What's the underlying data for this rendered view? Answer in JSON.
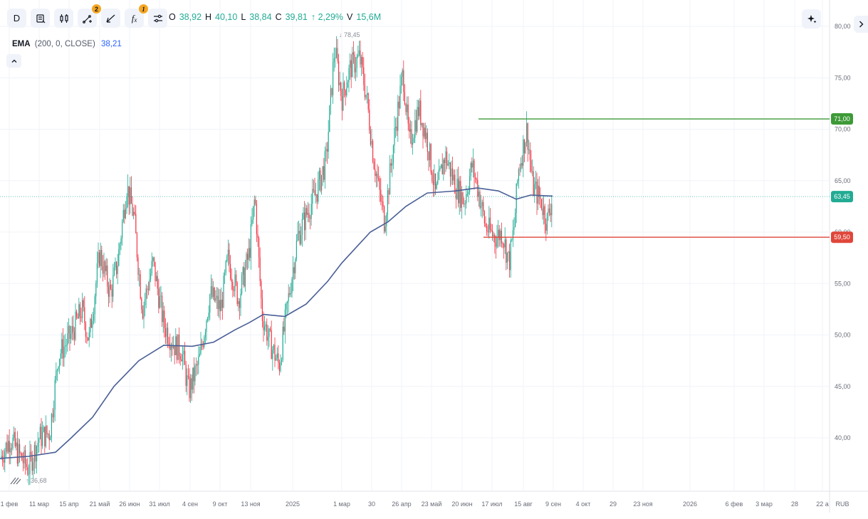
{
  "toolbar": {
    "interval_label": "D",
    "drawings_badge": "2",
    "indicators_badge": "1",
    "indicators_label": "f",
    "indicators_sub": "x"
  },
  "ohlc": {
    "o_label": "O",
    "o_value": "38,92",
    "h_label": "H",
    "h_value": "40,10",
    "l_label": "L",
    "l_value": "38,84",
    "c_label": "C",
    "c_value": "39,81",
    "change": "↑ 2,29%",
    "v_label": "V",
    "v_value": "15,6M"
  },
  "ema_legend": {
    "name": "EMA",
    "params": "(200, 0, CLOSE)",
    "value": "38,21"
  },
  "colors": {
    "up": "#22ab94",
    "down": "#f23645",
    "ema": "#4a5f96",
    "grid": "#f0f3fa",
    "last_price": "#22ab94",
    "resistance": "#3d9a37",
    "support": "#e0463a"
  },
  "chart_data": {
    "type": "candlestick",
    "y_ticks": [
      "80,00",
      "75,00",
      "70,00",
      "65,00",
      "60,00",
      "55,00",
      "50,00",
      "45,00",
      "40,00"
    ],
    "ylim": [
      35.5,
      81.5
    ],
    "x_ticks": [
      "1 фев",
      "11 мар",
      "15 апр",
      "21 май",
      "26 июн",
      "31 июл",
      "4 сен",
      "9 окт",
      "13 ноя",
      "2025",
      "1 мар",
      "30",
      "26 апр",
      "23 май",
      "20 июн",
      "17 июл",
      "15 авг",
      "9 сен",
      "4 окт",
      "29",
      "23 ноя",
      "2026",
      "6 фев",
      "3 мар",
      "28",
      "22 а"
    ],
    "currency": "RUB",
    "high_annotation": "78,45",
    "low_annotation": "36,68",
    "last_price": {
      "label": "63,45",
      "value": 63.45
    },
    "resistance": {
      "label": "71,00",
      "value": 71.0
    },
    "support": {
      "label": "59,50",
      "value": 59.5
    },
    "price_path": [
      [
        0,
        38.0
      ],
      [
        15,
        40.0
      ],
      [
        25,
        38.5
      ],
      [
        40,
        37.0
      ],
      [
        55,
        40.0
      ],
      [
        70,
        40.5
      ],
      [
        82,
        48.0
      ],
      [
        100,
        50.0
      ],
      [
        115,
        52.5
      ],
      [
        125,
        49.5
      ],
      [
        140,
        58.0
      ],
      [
        155,
        54.0
      ],
      [
        165,
        57.0
      ],
      [
        178,
        64.5
      ],
      [
        188,
        61.5
      ],
      [
        200,
        52.5
      ],
      [
        215,
        57.0
      ],
      [
        230,
        51.0
      ],
      [
        245,
        49.0
      ],
      [
        255,
        48.5
      ],
      [
        265,
        44.5
      ],
      [
        280,
        47.5
      ],
      [
        295,
        54.0
      ],
      [
        310,
        52.5
      ],
      [
        320,
        57.5
      ],
      [
        335,
        53.5
      ],
      [
        350,
        58.0
      ],
      [
        358,
        63.5
      ],
      [
        368,
        52.0
      ],
      [
        378,
        49.5
      ],
      [
        392,
        47.0
      ],
      [
        405,
        53.5
      ],
      [
        418,
        59.5
      ],
      [
        432,
        62.0
      ],
      [
        445,
        64.0
      ],
      [
        458,
        67.0
      ],
      [
        470,
        78.0
      ],
      [
        480,
        73.0
      ],
      [
        492,
        76.0
      ],
      [
        505,
        77.0
      ],
      [
        515,
        73.0
      ],
      [
        525,
        67.0
      ],
      [
        540,
        61.0
      ],
      [
        555,
        70.0
      ],
      [
        566,
        75.5
      ],
      [
        575,
        68.5
      ],
      [
        588,
        72.0
      ],
      [
        600,
        69.0
      ],
      [
        612,
        63.5
      ],
      [
        625,
        67.5
      ],
      [
        640,
        64.5
      ],
      [
        652,
        63.0
      ],
      [
        663,
        66.5
      ],
      [
        672,
        64.0
      ],
      [
        682,
        60.5
      ],
      [
        695,
        59.5
      ],
      [
        705,
        60.0
      ],
      [
        715,
        57.0
      ],
      [
        722,
        60.5
      ],
      [
        728,
        66.0
      ],
      [
        740,
        70.0
      ],
      [
        748,
        64.5
      ],
      [
        760,
        63.0
      ],
      [
        768,
        61.0
      ],
      [
        776,
        63.5
      ]
    ],
    "ema_path": [
      [
        0,
        38.0
      ],
      [
        40,
        38.2
      ],
      [
        78,
        38.6
      ],
      [
        100,
        40.0
      ],
      [
        130,
        42.0
      ],
      [
        160,
        45.0
      ],
      [
        195,
        47.5
      ],
      [
        230,
        49.0
      ],
      [
        270,
        48.9
      ],
      [
        300,
        49.3
      ],
      [
        330,
        50.5
      ],
      [
        350,
        51.2
      ],
      [
        370,
        52.0
      ],
      [
        400,
        51.8
      ],
      [
        430,
        53.0
      ],
      [
        460,
        55.2
      ],
      [
        480,
        57.0
      ],
      [
        500,
        58.5
      ],
      [
        520,
        60.0
      ],
      [
        545,
        61.0
      ],
      [
        570,
        62.5
      ],
      [
        600,
        63.8
      ],
      [
        640,
        64.0
      ],
      [
        670,
        64.3
      ],
      [
        700,
        64.0
      ],
      [
        725,
        63.2
      ],
      [
        745,
        63.6
      ],
      [
        776,
        63.5
      ]
    ]
  }
}
